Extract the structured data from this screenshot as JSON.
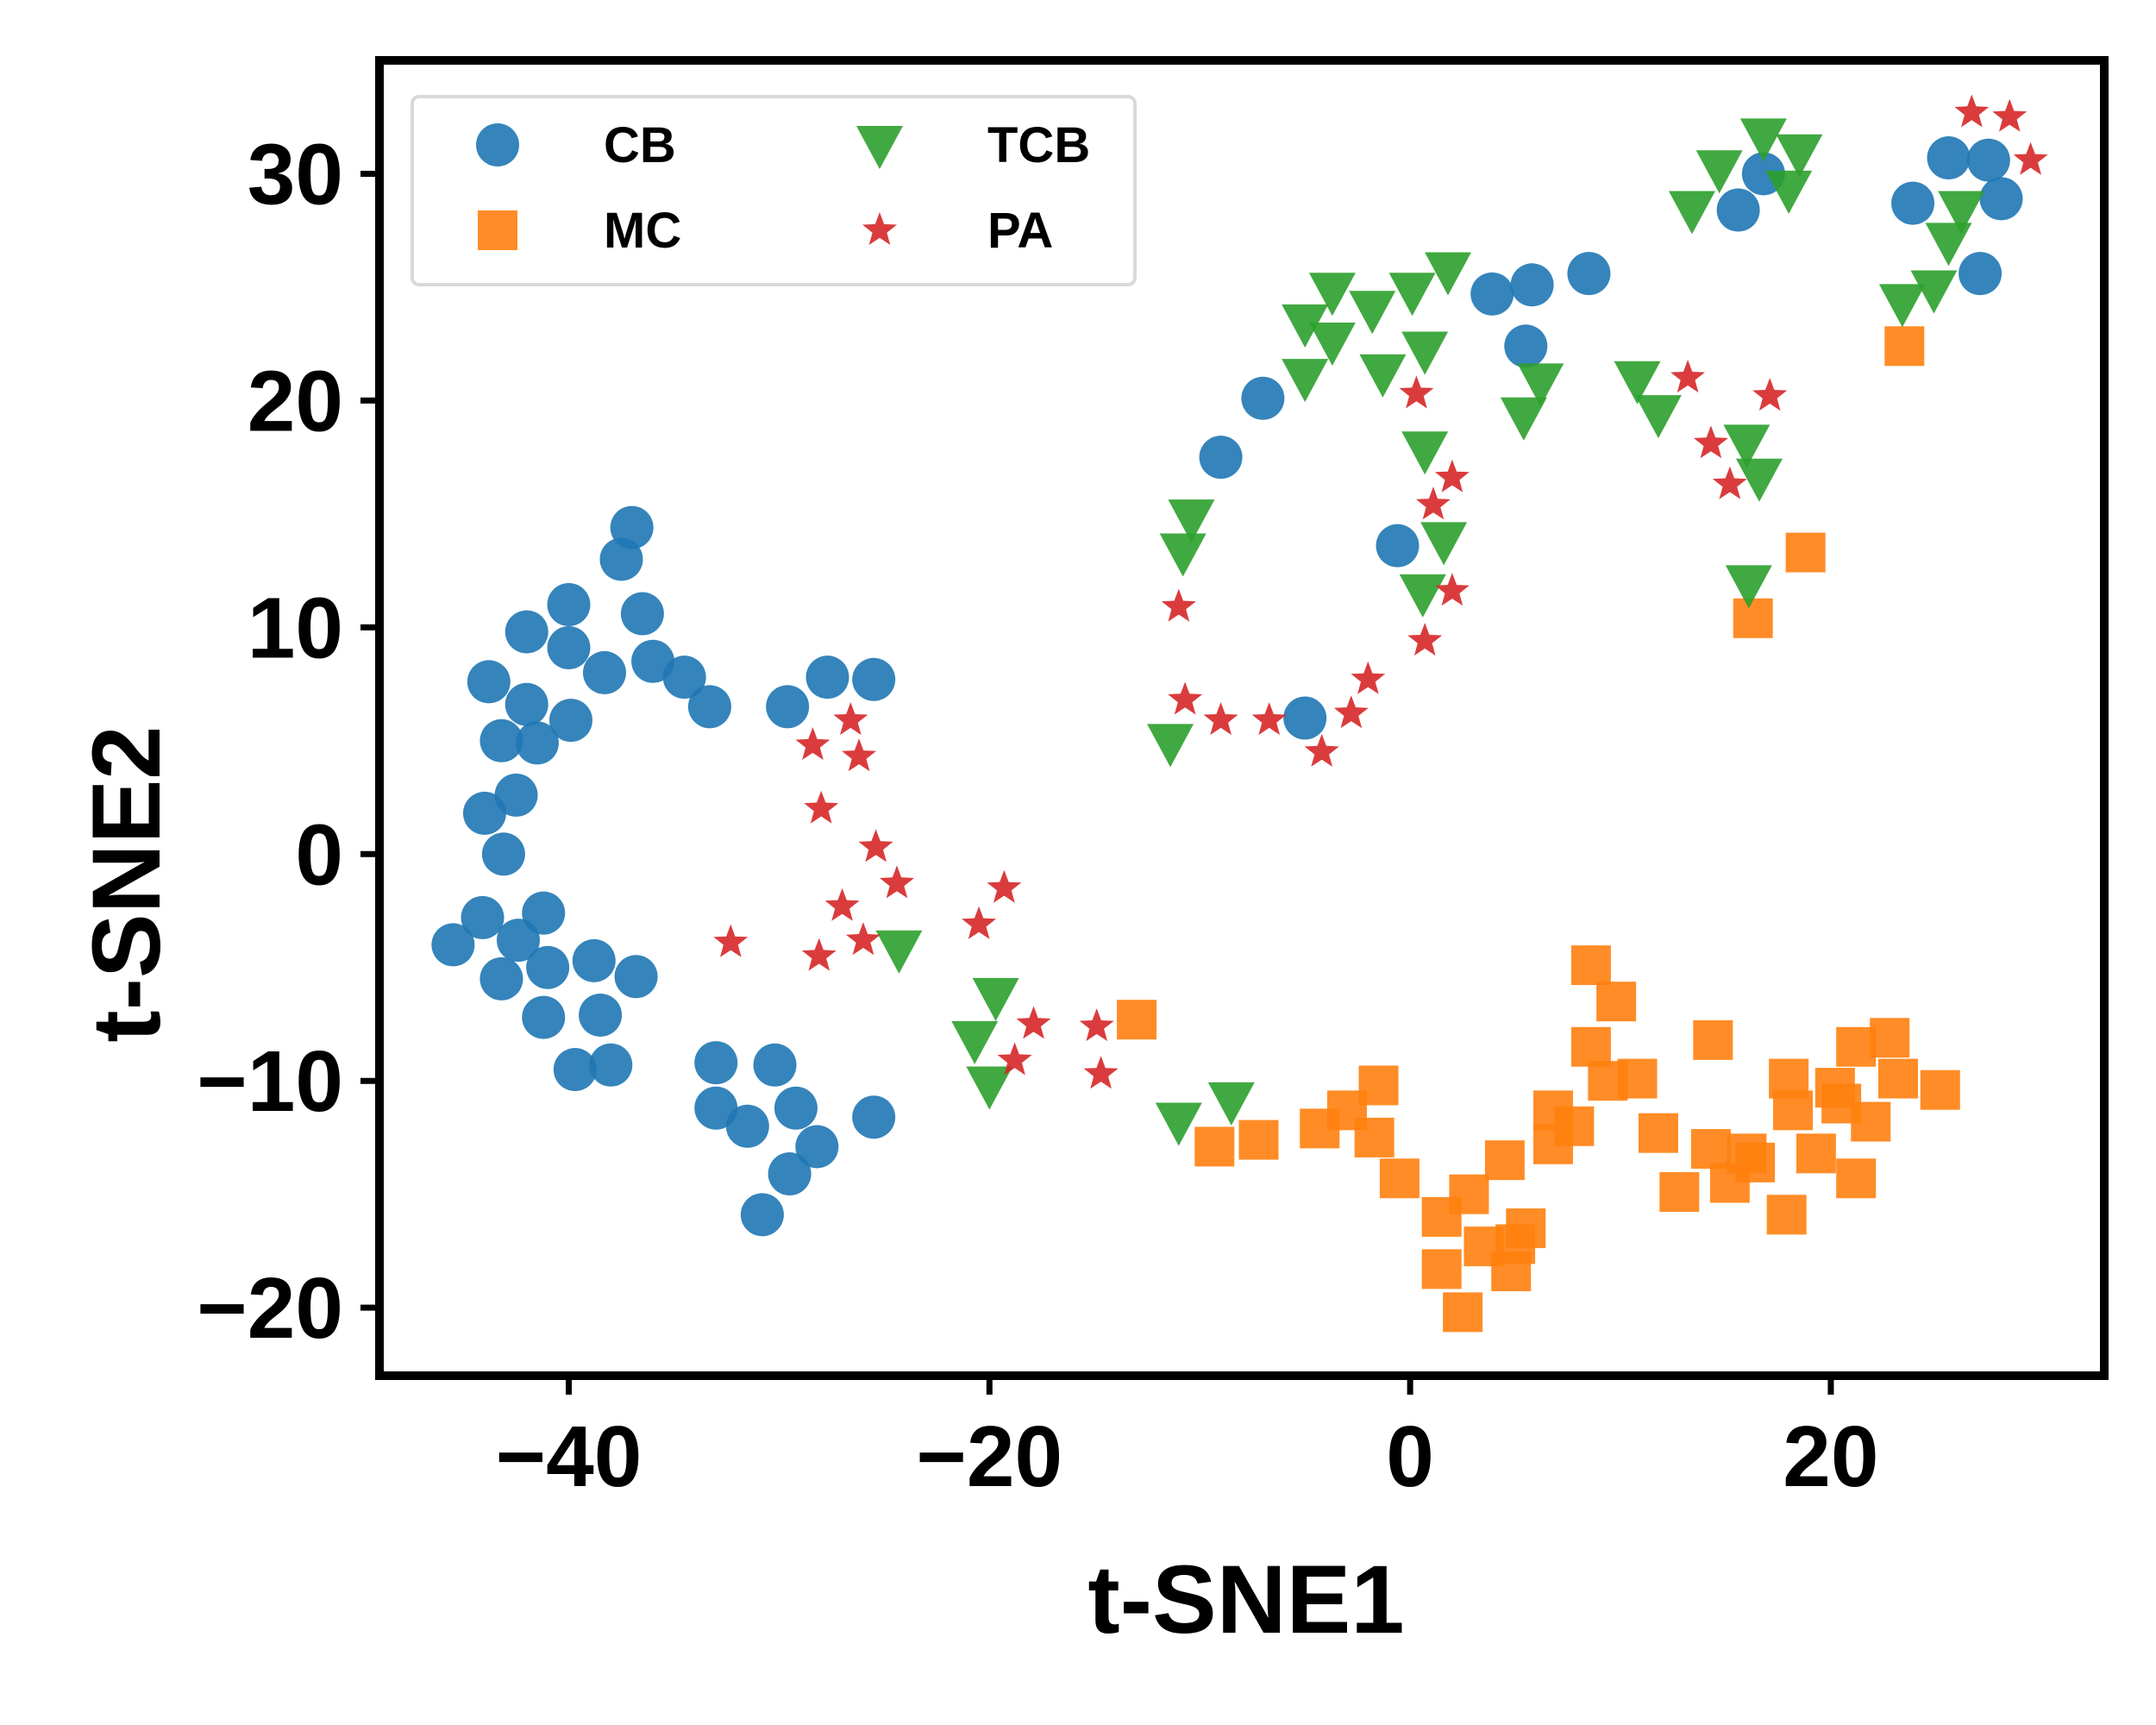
{
  "chart_data": {
    "type": "scatter",
    "xlabel": "t-SNE1",
    "ylabel": "t-SNE2",
    "xlim": [
      -49,
      33
    ],
    "ylim": [
      -23,
      35
    ],
    "xticks": [
      -40,
      -20,
      0,
      20
    ],
    "yticks": [
      -20,
      -10,
      0,
      10,
      20,
      30
    ],
    "tick_labels": {
      "x": [
        "−40",
        "−20",
        "0",
        "20"
      ],
      "y": [
        "−20",
        "−10",
        "0",
        "10",
        "20",
        "30"
      ]
    },
    "grid": false,
    "legend": {
      "placement": "top-left",
      "columns": 2
    },
    "series": [
      {
        "name": "CB",
        "marker": "circle",
        "color": "#1f77b4",
        "points": [
          [
            -37,
            14.4
          ],
          [
            -37.5,
            13
          ],
          [
            -36.5,
            10.6
          ],
          [
            -36,
            8.5
          ],
          [
            -34.5,
            7.8
          ],
          [
            -33.3,
            6.5
          ],
          [
            -40,
            11
          ],
          [
            -42,
            9.8
          ],
          [
            -40,
            9.1
          ],
          [
            -38.3,
            8
          ],
          [
            -43.8,
            7.6
          ],
          [
            -42,
            6.6
          ],
          [
            -39.9,
            5.9
          ],
          [
            -43.2,
            5
          ],
          [
            -41.5,
            4.9
          ],
          [
            -42.5,
            2.6
          ],
          [
            -44,
            1.8
          ],
          [
            -43.1,
            0
          ],
          [
            -44.1,
            -2.8
          ],
          [
            -41.2,
            -2.6
          ],
          [
            -45.5,
            -4
          ],
          [
            -42.4,
            -3.8
          ],
          [
            -41,
            -5
          ],
          [
            -43.2,
            -5.5
          ],
          [
            -38.8,
            -4.7
          ],
          [
            -36.8,
            -5.4
          ],
          [
            -41.2,
            -7.2
          ],
          [
            -38.5,
            -7.1
          ],
          [
            -39.7,
            -9.5
          ],
          [
            -38,
            -9.3
          ],
          [
            -33,
            -9.2
          ],
          [
            -30.2,
            -9.3
          ],
          [
            -33,
            -11.2
          ],
          [
            -29.2,
            -11.2
          ],
          [
            -31.5,
            -12
          ],
          [
            -28.2,
            -12.9
          ],
          [
            -29.5,
            -14.1
          ],
          [
            -30.8,
            -15.9
          ],
          [
            -25.5,
            -11.6
          ],
          [
            -29.6,
            6.5
          ],
          [
            -27.7,
            7.8
          ],
          [
            -25.5,
            7.7
          ],
          [
            -9,
            17.5
          ],
          [
            -7,
            20.1
          ],
          [
            -5,
            6
          ],
          [
            -0.6,
            13.6
          ],
          [
            3.9,
            24.7
          ],
          [
            5.8,
            25.1
          ],
          [
            5.5,
            22.4
          ],
          [
            8.5,
            25.6
          ],
          [
            15.6,
            28.4
          ],
          [
            16.8,
            30
          ],
          [
            23.9,
            28.7
          ],
          [
            25.6,
            30.7
          ],
          [
            27.5,
            30.6
          ],
          [
            28.1,
            28.9
          ],
          [
            27.1,
            25.6
          ]
        ]
      },
      {
        "name": "MC",
        "marker": "square",
        "color": "#ff7f0e",
        "points": [
          [
            -13,
            -7.3
          ],
          [
            -9.3,
            -12.9
          ],
          [
            -7.2,
            -12.6
          ],
          [
            -4.3,
            -12.1
          ],
          [
            -3,
            -11.3
          ],
          [
            -1.7,
            -12.5
          ],
          [
            -1.5,
            -10.2
          ],
          [
            -0.5,
            -14.3
          ],
          [
            1.5,
            -16
          ],
          [
            2.5,
            -20.2
          ],
          [
            1.5,
            -18.3
          ],
          [
            2.8,
            -15
          ],
          [
            3.5,
            -17.3
          ],
          [
            4.8,
            -18.4
          ],
          [
            5,
            -17.2
          ],
          [
            5.5,
            -16.5
          ],
          [
            4.5,
            -13.5
          ],
          [
            6.8,
            -11.3
          ],
          [
            6.8,
            -12.8
          ],
          [
            7.8,
            -12
          ],
          [
            8.6,
            -8.5
          ],
          [
            8.6,
            -4.9
          ],
          [
            9.4,
            -10
          ],
          [
            9.8,
            -6.5
          ],
          [
            10.8,
            -9.9
          ],
          [
            11.8,
            -12.3
          ],
          [
            12.8,
            -14.9
          ],
          [
            14.3,
            -13
          ],
          [
            14.4,
            -8.2
          ],
          [
            15.2,
            -14.5
          ],
          [
            16,
            -13.2
          ],
          [
            16.4,
            -13.6
          ],
          [
            17.9,
            -15.9
          ],
          [
            18,
            -9.9
          ],
          [
            18.2,
            -11.3
          ],
          [
            19.3,
            -13.2
          ],
          [
            20.2,
            -10.3
          ],
          [
            21.2,
            -8.5
          ],
          [
            21.2,
            -14.3
          ],
          [
            21.9,
            -11.8
          ],
          [
            22.8,
            -8.1
          ],
          [
            23.2,
            -9.9
          ],
          [
            25.2,
            -10.4
          ],
          [
            20.5,
            -11
          ],
          [
            23.5,
            22.4
          ],
          [
            18.8,
            13.3
          ],
          [
            16.3,
            10.4
          ]
        ]
      },
      {
        "name": "TCB",
        "marker": "triangle-down",
        "color": "#2ca02c",
        "points": [
          [
            -24.3,
            -4.2
          ],
          [
            -19.7,
            -6.3
          ],
          [
            -20.7,
            -8.2
          ],
          [
            -20,
            -10.2
          ],
          [
            -11,
            -11.8
          ],
          [
            -8.5,
            -10.9
          ],
          [
            -11.4,
            4.9
          ],
          [
            -10.8,
            13.3
          ],
          [
            -10.4,
            14.8
          ],
          [
            -5,
            23.4
          ],
          [
            -3.7,
            24.8
          ],
          [
            -3.7,
            22.6
          ],
          [
            -5,
            21
          ],
          [
            -1.8,
            24
          ],
          [
            -1.3,
            21.2
          ],
          [
            0.1,
            24.8
          ],
          [
            0.7,
            22.2
          ],
          [
            1.8,
            25.7
          ],
          [
            0.7,
            17.8
          ],
          [
            1.6,
            13.8
          ],
          [
            0.6,
            11.5
          ],
          [
            5.4,
            19.3
          ],
          [
            6.2,
            20.8
          ],
          [
            10.8,
            20.9
          ],
          [
            11.8,
            19.4
          ],
          [
            13.4,
            28.4
          ],
          [
            14.7,
            30.2
          ],
          [
            16.8,
            31.6
          ],
          [
            18,
            29.3
          ],
          [
            18.5,
            30.9
          ],
          [
            16,
            18.1
          ],
          [
            16.6,
            16.6
          ],
          [
            16.1,
            11.9
          ],
          [
            23.4,
            24.3
          ],
          [
            24.9,
            24.9
          ],
          [
            25.6,
            27
          ],
          [
            26.2,
            28.4
          ]
        ]
      },
      {
        "name": "PA",
        "marker": "star",
        "color": "#d62728",
        "points": [
          [
            -32.3,
            -3.9
          ],
          [
            -28.4,
            4.8
          ],
          [
            -26.6,
            5.9
          ],
          [
            -26.2,
            4.3
          ],
          [
            -28,
            2
          ],
          [
            -25.4,
            0.3
          ],
          [
            -24.4,
            -1.3
          ],
          [
            -27,
            -2.3
          ],
          [
            -28.1,
            -4.5
          ],
          [
            -26,
            -3.8
          ],
          [
            -19.3,
            -1.5
          ],
          [
            -20.5,
            -3.1
          ],
          [
            -17.9,
            -7.5
          ],
          [
            -18.8,
            -9.1
          ],
          [
            -14.9,
            -7.6
          ],
          [
            -14.7,
            -9.7
          ],
          [
            -11,
            10.9
          ],
          [
            -10.7,
            6.8
          ],
          [
            -9,
            5.9
          ],
          [
            -6.7,
            5.9
          ],
          [
            -4.2,
            4.5
          ],
          [
            -2.8,
            6.2
          ],
          [
            -2,
            7.7
          ],
          [
            0.3,
            20.3
          ],
          [
            0.7,
            9.4
          ],
          [
            1.1,
            15.4
          ],
          [
            2,
            16.6
          ],
          [
            2,
            11.6
          ],
          [
            13.2,
            21
          ],
          [
            14.3,
            18.1
          ],
          [
            15.2,
            16.3
          ],
          [
            17.1,
            20.2
          ],
          [
            26.7,
            32.7
          ],
          [
            28.5,
            32.5
          ],
          [
            29.5,
            30.6
          ]
        ]
      }
    ]
  }
}
